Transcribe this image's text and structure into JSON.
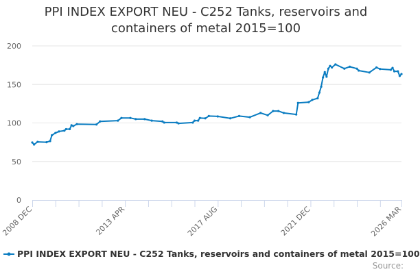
{
  "chart_data": {
    "type": "line",
    "title_lines": [
      "PPI INDEX EXPORT NEU - C252 Tanks, reservoirs and",
      "containers of metal 2015=100"
    ],
    "xlabel": "",
    "ylabel": "",
    "ylim": [
      0,
      200
    ],
    "yticks": [
      0,
      50,
      100,
      150,
      200
    ],
    "xlim": [
      "2008-12",
      "2026-03"
    ],
    "xtick_interval_months": 13,
    "xtick_labels": [
      {
        "date": "2008-12",
        "label": "2008 DEC"
      },
      {
        "date": "2013-04",
        "label": "2013 APR"
      },
      {
        "date": "2017-08",
        "label": "2017 AUG"
      },
      {
        "date": "2021-12",
        "label": "2021 DEC"
      },
      {
        "date": "2026-03",
        "label": "2026 MAR"
      }
    ],
    "grid": true,
    "legend_position": "bottom",
    "series": [
      {
        "name": "PPI INDEX EXPORT NEU - C252 Tanks, reservoirs and containers of metal 2015=100",
        "color": "#0a7cc1",
        "points": [
          [
            "2008-12",
            74.7
          ],
          [
            "2009-01",
            72
          ],
          [
            "2009-03",
            75.5
          ],
          [
            "2009-08",
            75
          ],
          [
            "2009-10",
            76.5
          ],
          [
            "2009-11",
            84
          ],
          [
            "2010-01",
            87
          ],
          [
            "2010-03",
            89
          ],
          [
            "2010-06",
            90
          ],
          [
            "2010-07",
            92
          ],
          [
            "2010-09",
            92
          ],
          [
            "2010-10",
            97
          ],
          [
            "2010-11",
            96
          ],
          [
            "2011-01",
            98.5
          ],
          [
            "2011-12",
            98
          ],
          [
            "2012-02",
            102
          ],
          [
            "2012-12",
            103
          ],
          [
            "2013-02",
            106.5
          ],
          [
            "2013-07",
            106.5
          ],
          [
            "2013-10",
            105
          ],
          [
            "2014-03",
            105
          ],
          [
            "2014-07",
            103
          ],
          [
            "2015-01",
            102
          ],
          [
            "2015-02",
            100.5
          ],
          [
            "2015-09",
            100.5
          ],
          [
            "2015-10",
            99.5
          ],
          [
            "2016-06",
            100.5
          ],
          [
            "2016-07",
            103
          ],
          [
            "2016-09",
            103
          ],
          [
            "2016-10",
            106.5
          ],
          [
            "2017-01",
            106
          ],
          [
            "2017-03",
            109
          ],
          [
            "2017-08",
            108.5
          ],
          [
            "2018-03",
            106
          ],
          [
            "2018-08",
            109
          ],
          [
            "2019-02",
            107.5
          ],
          [
            "2019-08",
            113
          ],
          [
            "2019-12",
            110
          ],
          [
            "2020-03",
            115.5
          ],
          [
            "2020-06",
            115.5
          ],
          [
            "2020-09",
            113
          ],
          [
            "2021-04",
            111
          ],
          [
            "2021-05",
            126
          ],
          [
            "2021-11",
            127
          ],
          [
            "2022-01",
            130
          ],
          [
            "2022-04",
            132
          ],
          [
            "2022-05",
            139.5
          ],
          [
            "2022-06",
            147
          ],
          [
            "2022-07",
            159
          ],
          [
            "2022-08",
            166
          ],
          [
            "2022-09",
            160
          ],
          [
            "2022-10",
            170.5
          ],
          [
            "2022-11",
            174
          ],
          [
            "2022-12",
            172
          ],
          [
            "2023-02",
            176
          ],
          [
            "2023-07",
            170.5
          ],
          [
            "2023-10",
            173
          ],
          [
            "2024-02",
            170.5
          ],
          [
            "2024-03",
            168
          ],
          [
            "2024-09",
            165.5
          ],
          [
            "2025-01",
            172
          ],
          [
            "2025-03",
            170
          ],
          [
            "2025-09",
            169
          ],
          [
            "2025-10",
            171.5
          ],
          [
            "2025-11",
            167
          ],
          [
            "2026-01",
            167
          ],
          [
            "2026-02",
            161
          ],
          [
            "2026-03",
            163.5
          ]
        ]
      }
    ],
    "source_label": "Source:"
  }
}
